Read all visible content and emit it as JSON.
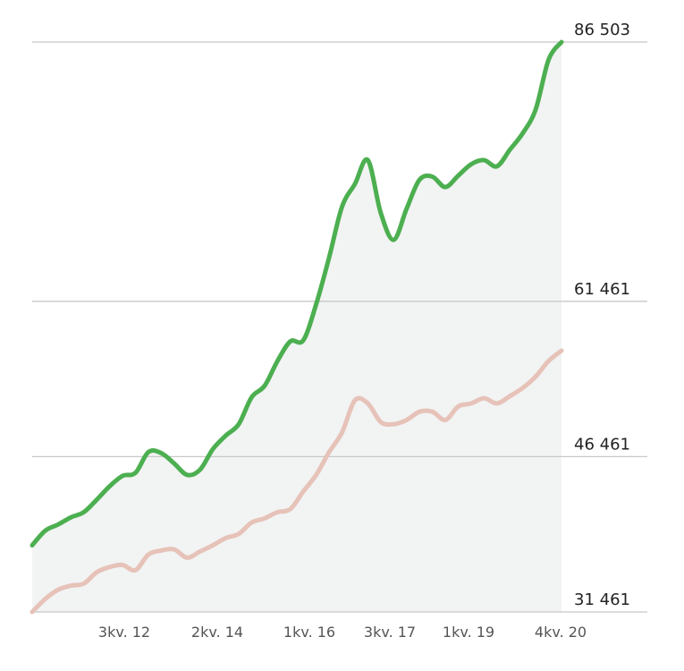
{
  "chart_data": {
    "type": "line",
    "title": "",
    "xlabel": "",
    "ylabel": "",
    "x_tick_labels": [
      "3kv. 12",
      "2kv. 14",
      "1kv. 16",
      "3kv. 17",
      "1kv. 19",
      "4kv. 20"
    ],
    "y_ticks": [
      31461,
      46461,
      61461,
      86503
    ],
    "y_tick_labels": [
      "31 461",
      "46 461",
      "61 461",
      "86 503"
    ],
    "ylim": [
      31461,
      86503
    ],
    "grid": true,
    "legend": "none",
    "colors": {
      "series_1": "#4caf50",
      "series_2": "#e6c2b8",
      "area_fill": "#f2f3f3",
      "grid": "#c8c8c8"
    },
    "series": [
      {
        "values": [
          37900,
          39300,
          39900,
          40600,
          41100,
          42300,
          43600,
          44600,
          44900,
          46900,
          46800,
          45800,
          44700,
          45200,
          47200,
          48500,
          49600,
          52200,
          53300,
          55700,
          57600,
          57700,
          61200,
          65700,
          70600,
          72800,
          75100,
          70000,
          67400,
          70400,
          73200,
          73500,
          72500,
          73600,
          74700,
          75100,
          74500,
          76100,
          77700,
          80000,
          84800,
          86503
        ]
      },
      {
        "values": [
          31461,
          32700,
          33600,
          34000,
          34200,
          35300,
          35800,
          36000,
          35500,
          37000,
          37400,
          37500,
          36700,
          37300,
          37900,
          38600,
          39000,
          40100,
          40500,
          41100,
          41400,
          43100,
          44700,
          46900,
          48800,
          51900,
          51600,
          49800,
          49600,
          50000,
          50800,
          50800,
          50000,
          51300,
          51600,
          52100,
          51600,
          52300,
          53100,
          54200,
          55700,
          56700
        ]
      }
    ]
  }
}
